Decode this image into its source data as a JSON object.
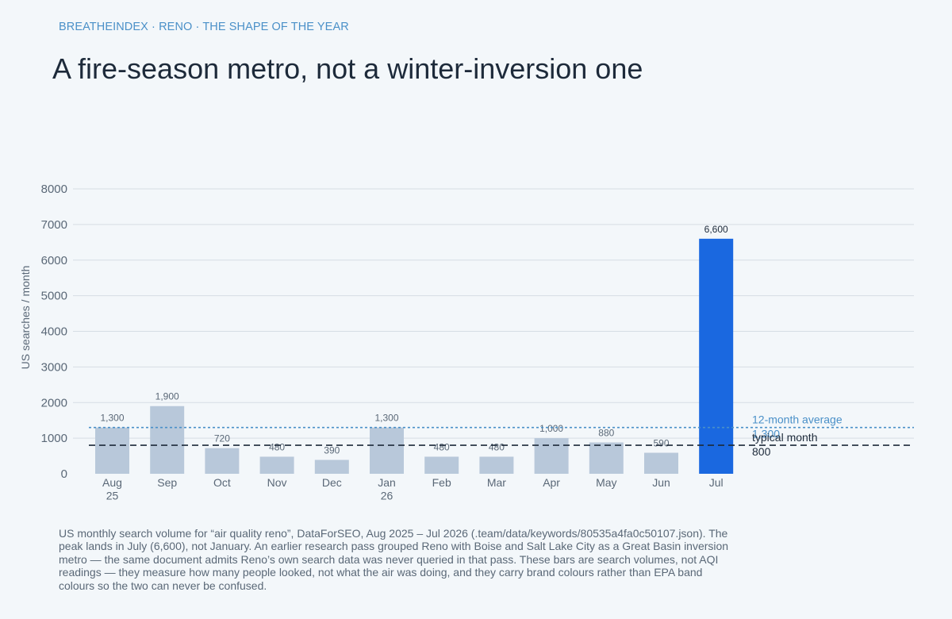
{
  "header": {
    "kicker": "BREATHEINDEX · RENO · THE SHAPE OF THE YEAR",
    "title": "A fire-season metro, not a winter-inversion one"
  },
  "caption": "US monthly search volume for “air quality reno”, DataForSEO, Aug 2025 – Jul 2026 (.team/data/keywords/80535a4fa0c50107.json). The peak lands in July (6,600), not January. An earlier research pass grouped Reno with Boise and Salt Lake City as a Great Basin inversion metro — the same document admits Reno’s own search data was never queried in that pass. These bars are search volumes, not AQI readings — they measure how many people looked, not what the air was doing, and they carry brand colours rather than EPA band colours so the two can never be confused.",
  "colors": {
    "bar": "#b8c8da",
    "highlight": "#1a68e0",
    "average": "#4a90c8",
    "typical": "#1d2a3a",
    "grid": "#d6dde4"
  },
  "chart_data": {
    "type": "bar",
    "categories": [
      "Aug 25",
      "Sep",
      "Oct",
      "Nov",
      "Dec",
      "Jan 26",
      "Feb",
      "Mar",
      "Apr",
      "May",
      "Jun",
      "Jul"
    ],
    "x_tick_lines": [
      [
        "Aug",
        "25"
      ],
      [
        "Sep"
      ],
      [
        "Oct"
      ],
      [
        "Nov"
      ],
      [
        "Dec"
      ],
      [
        "Jan",
        "26"
      ],
      [
        "Feb"
      ],
      [
        "Mar"
      ],
      [
        "Apr"
      ],
      [
        "May"
      ],
      [
        "Jun"
      ],
      [
        "Jul"
      ]
    ],
    "values": [
      1300,
      1900,
      720,
      480,
      390,
      1300,
      480,
      480,
      1000,
      880,
      590,
      6600
    ],
    "value_labels": [
      "1,300",
      "1,900",
      "720",
      "480",
      "390",
      "1,300",
      "480",
      "480",
      "1,000",
      "880",
      "590",
      "6,600"
    ],
    "highlight_index": 11,
    "ylabel": "US searches / month",
    "xlabel": "",
    "ylim": [
      0,
      8000
    ],
    "yticks": [
      0,
      1000,
      2000,
      3000,
      4000,
      5000,
      6000,
      7000,
      8000
    ],
    "grid": true,
    "reference_lines": [
      {
        "name": "12-month average",
        "value": 1300,
        "value_label": "1,300",
        "style": "dotted"
      },
      {
        "name": "typical month",
        "value": 800,
        "value_label": "800",
        "style": "dashed"
      }
    ]
  }
}
